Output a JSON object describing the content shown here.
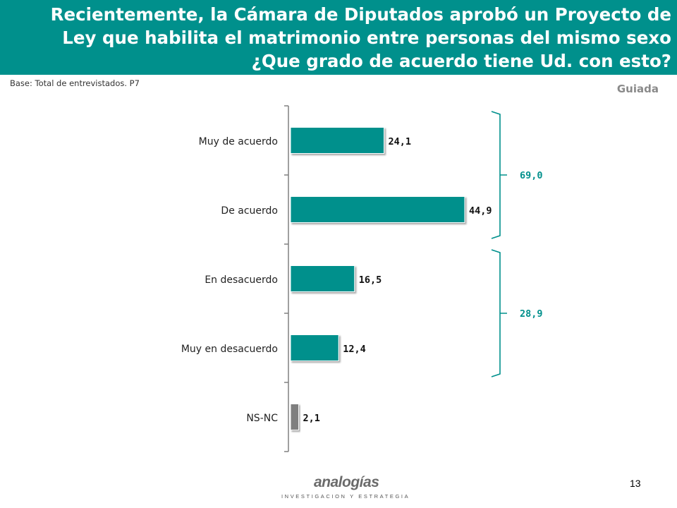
{
  "header": {
    "title": "Recientemente, la Cámara de Diputados aprobó un Proyecto de Ley que habilita el matrimonio entre personas del mismo sexo ¿Que grado de acuerdo tiene Ud. con esto?"
  },
  "base_note": "Base: Total de  entrevistados. P7",
  "tag": "Guiada",
  "page_number": "13",
  "logo": {
    "name": "analogías",
    "tagline": "INVESTIGACION Y ESTRATEGIA"
  },
  "colors": {
    "header_bg": "#00908c",
    "bar": "#00908c",
    "bar_nsnc": "#7f7f7f",
    "bracket": "#00908c",
    "axis": "#808080"
  },
  "chart_data": {
    "type": "bar",
    "orientation": "horizontal",
    "categories": [
      "Muy de acuerdo",
      "De acuerdo",
      "En desacuerdo",
      "Muy en desacuerdo",
      "NS-NC"
    ],
    "values": [
      24.1,
      44.9,
      16.5,
      12.4,
      2.1
    ],
    "value_labels": [
      "24,1",
      "44,9",
      "16,5",
      "12,4",
      "2,1"
    ],
    "xlim": [
      0,
      50
    ],
    "grid": false,
    "groups": [
      {
        "label": "69,0",
        "value": 69.0,
        "categories": [
          "Muy de acuerdo",
          "De acuerdo"
        ]
      },
      {
        "label": "28,9",
        "value": 28.9,
        "categories": [
          "En desacuerdo",
          "Muy en desacuerdo"
        ]
      }
    ]
  }
}
